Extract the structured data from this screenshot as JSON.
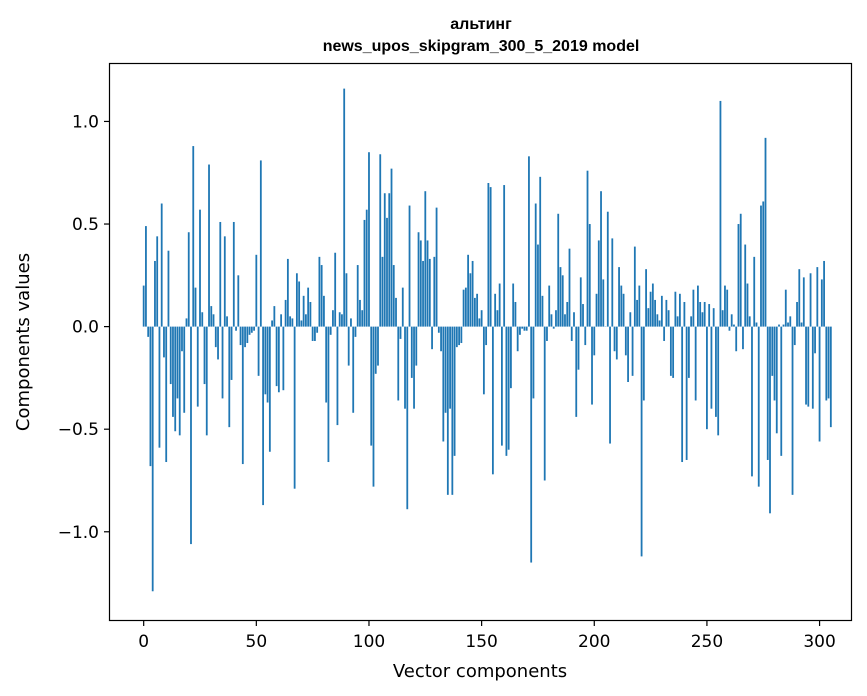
{
  "chart_data": {
    "type": "bar",
    "title": "альтинг",
    "subtitle": "news_upos_skipgram_300_5_2019 model",
    "xlabel": "Vector components",
    "ylabel": "Components values",
    "xlim": [
      -14.95,
      313.95
    ],
    "ylim": [
      -1.43,
      1.28
    ],
    "xticks": [
      0,
      50,
      100,
      150,
      200,
      250,
      300
    ],
    "xtick_labels": [
      "0",
      "50",
      "100",
      "150",
      "200",
      "250",
      "300"
    ],
    "yticks": [
      -1.0,
      -0.5,
      0.0,
      0.5,
      1.0
    ],
    "ytick_labels": [
      "−1.0",
      "−0.5",
      "0.0",
      "0.5",
      "1.0"
    ],
    "grid": false,
    "legend": "none",
    "bar_color": "#1f77b4",
    "values": [
      0.2,
      0.49,
      -0.05,
      -0.68,
      -1.29,
      0.32,
      0.44,
      -0.59,
      0.6,
      -0.15,
      -0.66,
      0.37,
      -0.28,
      -0.44,
      -0.51,
      -0.35,
      -0.53,
      -0.12,
      -0.42,
      0.04,
      0.46,
      -1.06,
      0.88,
      0.19,
      -0.39,
      0.57,
      0.07,
      -0.28,
      -0.53,
      0.79,
      0.1,
      0.06,
      -0.1,
      -0.16,
      0.51,
      -0.35,
      0.44,
      0.05,
      -0.49,
      -0.26,
      0.51,
      -0.02,
      0.25,
      -0.09,
      -0.67,
      -0.1,
      -0.08,
      -0.04,
      -0.03,
      -0.02,
      0.35,
      -0.24,
      0.81,
      -0.87,
      -0.33,
      -0.37,
      -0.61,
      0.03,
      0.1,
      -0.29,
      -0.32,
      0.06,
      -0.31,
      0.13,
      0.33,
      0.05,
      0.04,
      -0.79,
      0.26,
      0.22,
      0.03,
      0.15,
      0.06,
      0.19,
      0.12,
      -0.07,
      -0.07,
      -0.03,
      0.34,
      0.3,
      0.15,
      -0.37,
      -0.66,
      -0.04,
      0.08,
      0.36,
      -0.48,
      0.07,
      0.06,
      1.16,
      0.26,
      -0.19,
      0.04,
      -0.42,
      -0.05,
      0.3,
      0.13,
      0.08,
      0.52,
      0.57,
      0.85,
      -0.58,
      -0.78,
      -0.23,
      -0.19,
      0.84,
      0.34,
      0.65,
      0.53,
      0.65,
      0.77,
      0.3,
      0.14,
      -0.36,
      -0.06,
      0.19,
      -0.4,
      -0.89,
      0.59,
      -0.25,
      -0.4,
      -0.19,
      0.46,
      0.42,
      0.32,
      0.66,
      0.42,
      0.33,
      -0.11,
      0.34,
      0.58,
      -0.03,
      -0.12,
      -0.56,
      -0.42,
      -0.82,
      -0.4,
      -0.82,
      -0.63,
      -0.1,
      -0.09,
      -0.08,
      0.18,
      0.19,
      0.35,
      0.26,
      0.32,
      0.14,
      0.16,
      0.04,
      0.08,
      -0.33,
      -0.09,
      0.7,
      0.68,
      -0.72,
      0.16,
      0.08,
      0.21,
      -0.58,
      0.69,
      -0.63,
      -0.6,
      -0.3,
      0.21,
      0.12,
      -0.12,
      -0.04,
      -0.01,
      -0.02,
      -0.02,
      0.83,
      -1.15,
      -0.35,
      0.6,
      0.4,
      0.73,
      0.15,
      -0.75,
      -0.07,
      0.2,
      0.06,
      -0.01,
      0.08,
      0.55,
      0.29,
      0.25,
      0.06,
      0.12,
      0.38,
      -0.07,
      0.07,
      -0.44,
      -0.21,
      0.24,
      0.11,
      -0.09,
      0.76,
      0.5,
      -0.38,
      -0.14,
      0.16,
      0.42,
      0.66,
      0.23,
      0.0,
      0.56,
      -0.57,
      0.43,
      -0.12,
      -0.16,
      0.29,
      0.2,
      0.16,
      -0.14,
      -0.27,
      0.07,
      -0.24,
      0.39,
      0.13,
      0.2,
      -1.12,
      -0.36,
      0.28,
      0.09,
      0.17,
      0.21,
      0.13,
      0.06,
      0.03,
      0.15,
      -0.07,
      0.13,
      0.08,
      -0.24,
      -0.25,
      0.17,
      0.05,
      0.16,
      -0.66,
      0.12,
      -0.65,
      -0.25,
      0.05,
      0.18,
      -0.36,
      0.2,
      0.12,
      0.07,
      0.12,
      -0.5,
      0.11,
      -0.4,
      0.09,
      -0.44,
      -0.53,
      1.1,
      0.08,
      0.2,
      0.18,
      -0.02,
      0.06,
      0.01,
      -0.12,
      0.5,
      0.55,
      -0.11,
      0.4,
      0.21,
      0.05,
      -0.73,
      0.34,
      0.02,
      -0.78,
      0.59,
      0.61,
      0.92,
      -0.65,
      -0.91,
      -0.24,
      -0.36,
      -0.52,
      0.01,
      -0.63,
      0.01,
      0.18,
      0.02,
      0.05,
      -0.82,
      -0.09,
      0.12,
      0.28,
      0.02,
      0.24,
      -0.38,
      -0.39,
      0.26,
      -0.4,
      -0.13,
      0.29,
      -0.56,
      0.23,
      0.32,
      -0.36,
      -0.35,
      -0.49
    ]
  }
}
